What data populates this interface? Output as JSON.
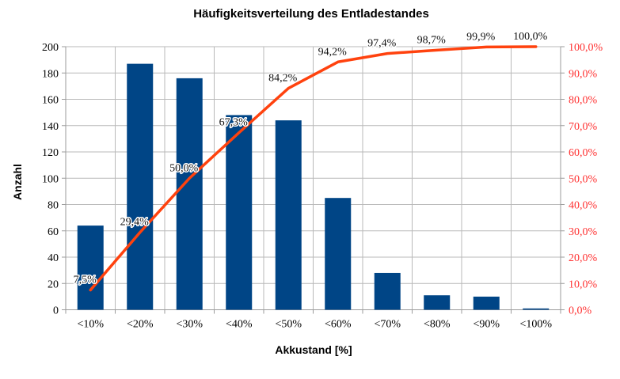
{
  "chart_data": {
    "type": "bar",
    "subtype": "pareto-combo-bar-line",
    "title": "Häufigkeitsverteilung des Entladestandes",
    "xlabel": "Akkustand [%]",
    "ylabel": "Anzahl",
    "categories": [
      "<10%",
      "<20%",
      "<30%",
      "<40%",
      "<50%",
      "<60%",
      "<70%",
      "<80%",
      "<90%",
      "<100%"
    ],
    "series": [
      {
        "id": "anzahl-bars",
        "render": "bar",
        "axis": "left",
        "color": "#004586",
        "values": [
          64,
          187,
          176,
          148,
          144,
          85,
          28,
          11,
          10,
          1
        ]
      },
      {
        "id": "cumulative-line",
        "render": "line",
        "axis": "right",
        "color": "#FF420E",
        "values": [
          7.5,
          29.4,
          50.0,
          67.3,
          84.2,
          94.2,
          97.4,
          98.7,
          99.9,
          100.0
        ],
        "point_labels": [
          "7,5%",
          "29,4%",
          "50,0%",
          "67,3%",
          "84,2%",
          "94,2%",
          "97,4%",
          "98,7%",
          "99,9%",
          "100,0%"
        ]
      }
    ],
    "left_axis": {
      "min": 0,
      "max": 200,
      "step": 20,
      "tick_labels": [
        "0",
        "20",
        "40",
        "60",
        "80",
        "100",
        "120",
        "140",
        "160",
        "180",
        "200"
      ],
      "label_color": "#000000"
    },
    "right_axis": {
      "min": 0,
      "max": 100,
      "step": 10,
      "tick_labels": [
        "0,0%",
        "10,0%",
        "20,0%",
        "30,0%",
        "40,0%",
        "50,0%",
        "60,0%",
        "70,0%",
        "80,0%",
        "90,0%",
        "100,0%"
      ],
      "label_color": "#ff3030"
    },
    "grid": {
      "horizontal": true,
      "vertical": true,
      "color": "#b9b9b9"
    },
    "axis_line_color": "#9b9b9b",
    "background": "#ffffff",
    "legend": "none"
  }
}
